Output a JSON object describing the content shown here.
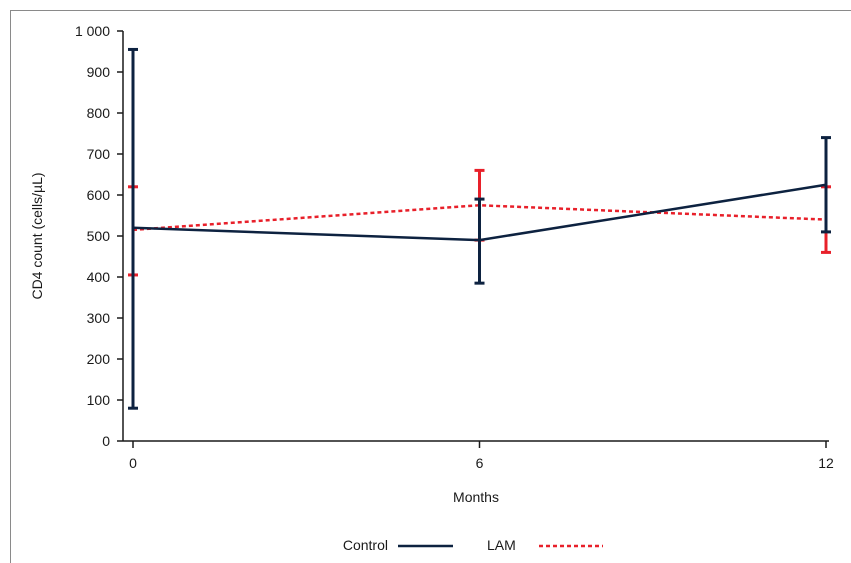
{
  "chart_data": {
    "type": "line",
    "x": [
      0,
      6,
      12
    ],
    "xlabel": "Months",
    "ylabel": "CD4 count (cells/µL)",
    "ylim": [
      0,
      1000
    ],
    "xlim": [
      0,
      12
    ],
    "x_ticks": [
      "0",
      "6",
      "12"
    ],
    "y_ticks": [
      "0",
      "100",
      "200",
      "300",
      "400",
      "500",
      "600",
      "700",
      "800",
      "900",
      "1 000"
    ],
    "y_tick_values": [
      0,
      100,
      200,
      300,
      400,
      500,
      600,
      700,
      800,
      900,
      1000
    ],
    "grid": false,
    "legend_position": "bottom-center",
    "series": [
      {
        "name": "Control",
        "values": [
          520,
          490,
          625
        ],
        "error_low": [
          80,
          385,
          510
        ],
        "error_high": [
          955,
          590,
          740
        ],
        "color": "#0d2240",
        "line_style": "solid"
      },
      {
        "name": "LAM",
        "values": [
          515,
          575,
          540
        ],
        "error_low": [
          405,
          490,
          460
        ],
        "error_high": [
          620,
          660,
          620
        ],
        "color": "#e8202a",
        "line_style": "dashed"
      }
    ]
  }
}
